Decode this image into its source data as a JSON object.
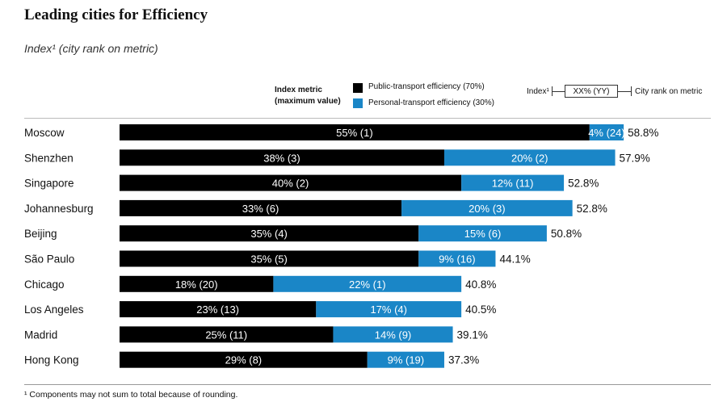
{
  "title": "Leading cities for Efficiency",
  "subtitle": "Index¹ (city rank on metric)",
  "legend": {
    "header_line1": "Index metric",
    "header_line2": "(maximum value)",
    "public_label": "Public-transport efficiency (70%)",
    "personal_label": "Personal-transport efficiency (30%)",
    "key_index": "Index¹",
    "key_box": "XX% (YY)",
    "key_rank": "City rank on metric"
  },
  "footnote": "¹   Components may not sum to total because of rounding.",
  "colors": {
    "public": "#000000",
    "personal": "#1a86c7",
    "bar_text": "#ffffff"
  },
  "chart_data": {
    "type": "bar",
    "orientation": "horizontal",
    "stacked": true,
    "categories": [
      "Moscow",
      "Shenzhen",
      "Singapore",
      "Johannesburg",
      "Beijing",
      "São Paulo",
      "Chicago",
      "Los Angeles",
      "Madrid",
      "Hong Kong"
    ],
    "series": [
      {
        "name": "Public-transport efficiency (70%)",
        "values": [
          55,
          38,
          40,
          33,
          35,
          35,
          18,
          23,
          25,
          29
        ],
        "ranks": [
          1,
          3,
          2,
          6,
          4,
          5,
          20,
          13,
          11,
          8
        ],
        "labels": [
          "55% (1)",
          "38% (3)",
          "40% (2)",
          "33% (6)",
          "35% (4)",
          "35% (5)",
          "18% (20)",
          "23% (13)",
          "25% (11)",
          "29% (8)"
        ]
      },
      {
        "name": "Personal-transport efficiency (30%)",
        "values": [
          4,
          20,
          12,
          20,
          15,
          9,
          22,
          17,
          14,
          9
        ],
        "ranks": [
          24,
          2,
          11,
          3,
          6,
          16,
          1,
          4,
          9,
          19
        ],
        "labels": [
          "4% (24)",
          "20% (2)",
          "12% (11)",
          "20% (3)",
          "15% (6)",
          "9% (16)",
          "22% (1)",
          "17% (4)",
          "14% (9)",
          "9% (19)"
        ]
      }
    ],
    "totals": [
      58.8,
      57.9,
      52.8,
      52.8,
      50.8,
      44.1,
      40.8,
      40.5,
      39.1,
      37.3
    ],
    "total_labels": [
      "58.8%",
      "57.9%",
      "52.8%",
      "52.8%",
      "50.8%",
      "44.1%",
      "40.8%",
      "40.5%",
      "39.1%",
      "37.3%"
    ],
    "xlim": [
      0,
      58.8
    ],
    "grid": false,
    "legend_position": "top-right"
  }
}
